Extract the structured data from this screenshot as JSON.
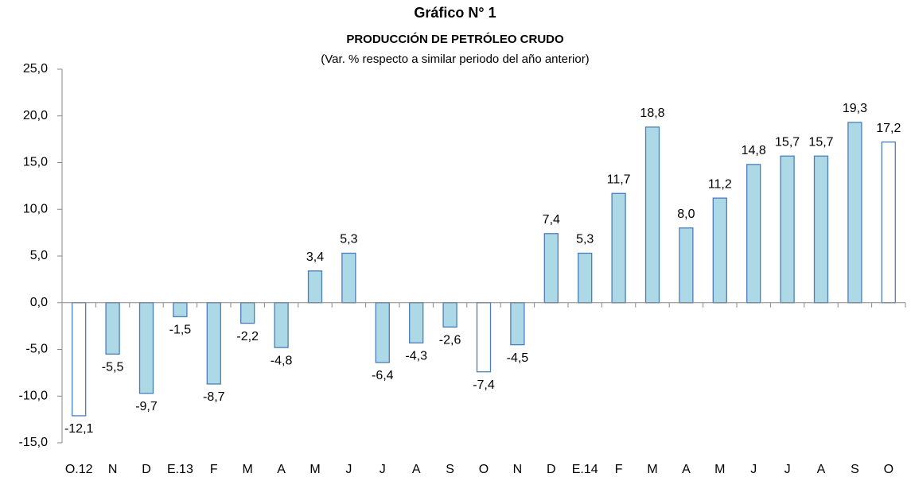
{
  "chart_data": {
    "type": "bar",
    "title": "Gráfico N° 1",
    "subtitle": "PRODUCCIÓN DE PETRÓLEO CRUDO",
    "note": "(Var. % respecto a similar periodo del año anterior)",
    "categories": [
      "O.12",
      "N",
      "D",
      "E.13",
      "F",
      "M",
      "A",
      "M",
      "J",
      "J",
      "A",
      "S",
      "O",
      "N",
      "D",
      "E.14",
      "F",
      "M",
      "A",
      "M",
      "J",
      "J",
      "A",
      "S",
      "O"
    ],
    "values": [
      -12.1,
      -5.5,
      -9.7,
      -1.5,
      -8.7,
      -2.2,
      -4.8,
      3.4,
      5.3,
      -6.4,
      -4.3,
      -2.6,
      -7.4,
      -4.5,
      7.4,
      5.3,
      11.7,
      18.8,
      8.0,
      11.2,
      14.8,
      15.7,
      15.7,
      19.3,
      17.2
    ],
    "value_labels": [
      "-12,1",
      "-5,5",
      "-9,7",
      "-1,5",
      "-8,7",
      "-2,2",
      "-4,8",
      "3,4",
      "5,3",
      "-6,4",
      "-4,3",
      "-2,6",
      "-7,4",
      "-4,5",
      "7,4",
      "5,3",
      "11,7",
      "18,8",
      "8,0",
      "11,2",
      "14,8",
      "15,7",
      "15,7",
      "19,3",
      "17,2"
    ],
    "colors": [
      "#ffffff",
      "#add8e6",
      "#add8e6",
      "#add8e6",
      "#add8e6",
      "#add8e6",
      "#add8e6",
      "#add8e6",
      "#add8e6",
      "#add8e6",
      "#add8e6",
      "#add8e6",
      "#ffffff",
      "#add8e6",
      "#add8e6",
      "#add8e6",
      "#add8e6",
      "#add8e6",
      "#add8e6",
      "#add8e6",
      "#add8e6",
      "#add8e6",
      "#add8e6",
      "#add8e6",
      "#ffffff"
    ],
    "edge_color": "#4a7ebb",
    "ylim": [
      -15,
      25
    ],
    "yticks": [
      {
        "value": -15,
        "label": "-15,0"
      },
      {
        "value": -10,
        "label": "-10,0"
      },
      {
        "value": -5,
        "label": "-5,0"
      },
      {
        "value": 0,
        "label": "0,0"
      },
      {
        "value": 5,
        "label": "5,0"
      },
      {
        "value": 10,
        "label": "10,0"
      },
      {
        "value": 15,
        "label": "15,0"
      },
      {
        "value": 20,
        "label": "20,0"
      },
      {
        "value": 25,
        "label": "25,0"
      }
    ],
    "grid": false
  }
}
